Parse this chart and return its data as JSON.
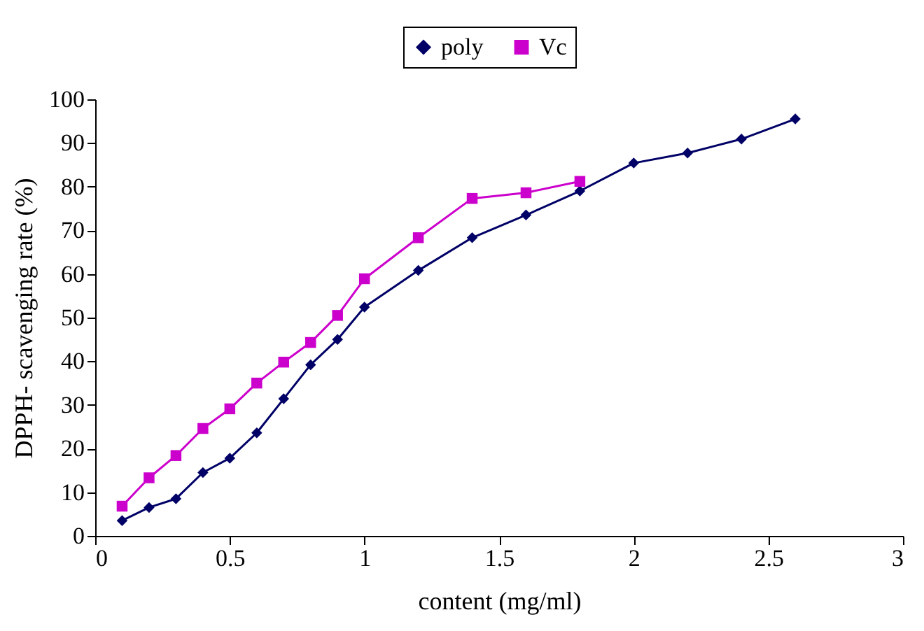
{
  "chart_data": {
    "type": "line",
    "xlabel": "content (mg/ml)",
    "ylabel": "DPPH- scavenging rate (%)",
    "xlim": [
      0,
      3
    ],
    "xticks": [
      0,
      0.5,
      1,
      1.5,
      2,
      2.5,
      3
    ],
    "ylim": [
      0,
      100
    ],
    "yticks": [
      0,
      10,
      20,
      30,
      40,
      50,
      60,
      70,
      80,
      90,
      100
    ],
    "grid": false,
    "legend": "top",
    "line_style": "solid",
    "series": [
      {
        "name": "poly",
        "color": "#000066",
        "marker": "diamond",
        "x": [
          0.1,
          0.2,
          0.3,
          0.4,
          0.5,
          0.6,
          0.7,
          0.8,
          0.9,
          1.0,
          1.2,
          1.4,
          1.6,
          1.8,
          2.0,
          2.2,
          2.4,
          2.6
        ],
        "values": [
          3.5,
          6.5,
          8.5,
          14.5,
          17.8,
          23.6,
          31.4,
          39.2,
          45,
          52.4,
          60.8,
          68.3,
          73.5,
          79,
          85.4,
          87.7,
          90.9,
          95.5
        ]
      },
      {
        "name": "Vc",
        "color": "#cc00cc",
        "marker": "square",
        "x": [
          0.1,
          0.2,
          0.3,
          0.4,
          0.5,
          0.6,
          0.7,
          0.8,
          0.9,
          1.0,
          1.2,
          1.4,
          1.6,
          1.8
        ],
        "values": [
          6.8,
          13.3,
          18.4,
          24.6,
          29.1,
          35,
          39.8,
          44.3,
          50.5,
          58.9,
          68.3,
          77.3,
          78.6,
          81.2
        ]
      }
    ]
  }
}
